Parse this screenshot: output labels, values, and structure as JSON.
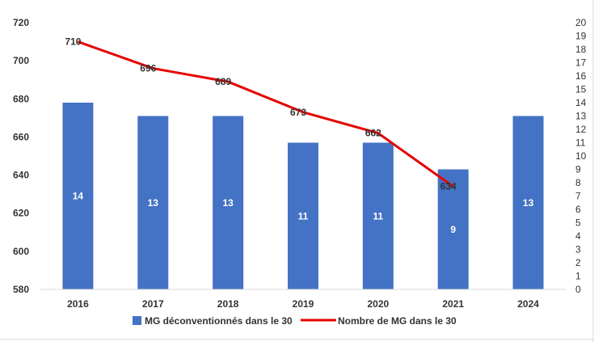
{
  "chart_data": {
    "type": "bar",
    "categories": [
      "2016",
      "2017",
      "2018",
      "2019",
      "2020",
      "2021",
      "2024"
    ],
    "series": [
      {
        "name": "MG déconventionnés dans le 30",
        "type": "bar",
        "axis": "right",
        "values": [
          14,
          13,
          13,
          11,
          11,
          9,
          13
        ],
        "labels": [
          "14",
          "13",
          "13",
          "11",
          "11",
          "9",
          "13"
        ],
        "color": "#4472C4"
      },
      {
        "name": "Nombre de MG dans le 30",
        "type": "line",
        "axis": "left",
        "values": [
          710,
          696,
          689,
          673,
          662,
          634,
          null
        ],
        "labels": [
          "710",
          "696",
          "689",
          "673",
          "662",
          "634",
          ""
        ],
        "color": "#E60000"
      }
    ],
    "y_left": {
      "min": 580,
      "max": 720,
      "step": 20,
      "ticks": [
        "580",
        "600",
        "620",
        "640",
        "660",
        "680",
        "700",
        "720"
      ]
    },
    "y_right": {
      "min": 0,
      "max": 20,
      "step": 1,
      "ticks": [
        "0",
        "1",
        "2",
        "3",
        "4",
        "5",
        "6",
        "7",
        "8",
        "9",
        "10",
        "11",
        "12",
        "13",
        "14",
        "15",
        "16",
        "17",
        "18",
        "19",
        "20"
      ]
    },
    "grid": false,
    "legend_position": "bottom"
  }
}
